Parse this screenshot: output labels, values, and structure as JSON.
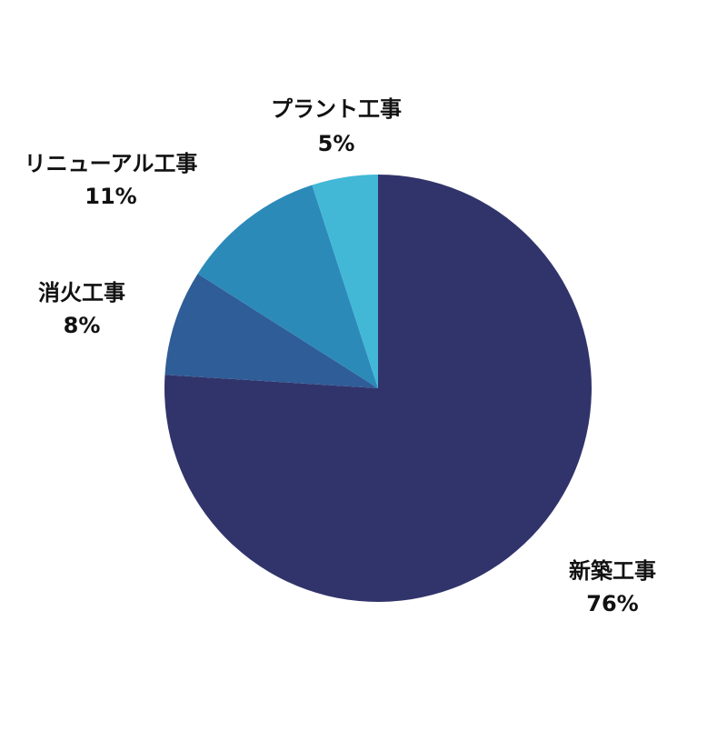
{
  "chart_data": {
    "type": "pie",
    "title": "",
    "slices": [
      {
        "label": "新築工事",
        "value": 76,
        "value_label": "76%",
        "color": "#31346B"
      },
      {
        "label": "消火工事",
        "value": 8,
        "value_label": "8%",
        "color": "#2F5D97"
      },
      {
        "label": "リニューアル工事",
        "value": 11,
        "value_label": "11%",
        "color": "#2C8AB9"
      },
      {
        "label": "プラント工事",
        "value": 5,
        "value_label": "5%",
        "color": "#42B8D6"
      }
    ],
    "start": "12 o'clock",
    "direction": "clockwise",
    "legend": "none"
  }
}
